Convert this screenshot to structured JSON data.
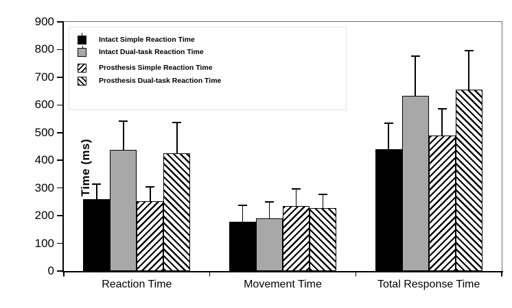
{
  "chart_data": {
    "type": "bar",
    "title": "",
    "xlabel": "",
    "ylabel": "Time (ms)",
    "ylim": [
      0,
      900
    ],
    "y_ticks": [
      0,
      100,
      200,
      300,
      400,
      500,
      600,
      700,
      800,
      900
    ],
    "grid": false,
    "legend_position": "upper-left",
    "error_bars": "upper-only",
    "categories": [
      "Reaction Time",
      "Movement Time",
      "Total Response Time"
    ],
    "series": [
      {
        "name": "Intact Simple Reaction Time",
        "fill": "solid-black",
        "values": [
          260,
          179,
          440
        ],
        "errors": [
          56,
          61,
          96
        ]
      },
      {
        "name": "Intact Dual-task Reaction Time",
        "fill": "solid-gray",
        "values": [
          437,
          191,
          632
        ],
        "errors": [
          108,
          62,
          146
        ]
      },
      {
        "name": "Prosthesis Simple Reaction Time",
        "fill": "hatch-forward",
        "values": [
          253,
          235,
          490
        ],
        "errors": [
          54,
          64,
          99
        ]
      },
      {
        "name": "Prosthesis Dual-task Reaction Time",
        "fill": "hatch-backward",
        "values": [
          426,
          228,
          655
        ],
        "errors": [
          112,
          52,
          144
        ]
      }
    ]
  },
  "colors": {
    "bar_black": "#000000",
    "bar_gray": "#a8a8a8",
    "axis": "#000000",
    "frame": "#6b6b6b",
    "background": "#ffffff"
  }
}
